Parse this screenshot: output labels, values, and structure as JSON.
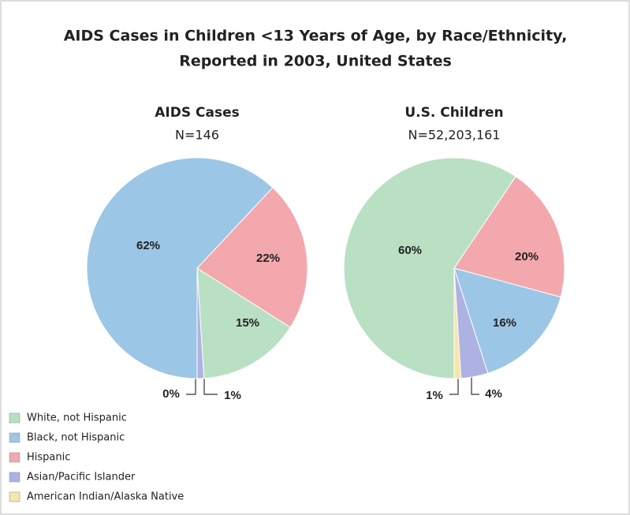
{
  "title": "AIDS Cases in Children <13 Years of Age, by Race/Ethnicity,",
  "subtitle": "Reported in 2003, United States",
  "legend": {
    "labels": [
      "White, not Hispanic",
      "Black, not Hispanic",
      "Hispanic",
      "Asian/Pacific Islander",
      "American Indian/Alaska Native"
    ],
    "colors": [
      "#b9e0c3",
      "#9cc6e6",
      "#f3a8ad",
      "#aeb2e2",
      "#f6e6a8"
    ]
  },
  "chart_data": [
    {
      "type": "pie",
      "title": "AIDS Cases",
      "subtitle": "N=146",
      "values": [
        15,
        62,
        22,
        1,
        0
      ],
      "value_labels": [
        "15%",
        "62%",
        "22%",
        "1%",
        "0%"
      ]
    },
    {
      "type": "pie",
      "title": "U.S. Children",
      "subtitle": "N=52,203,161",
      "values": [
        60,
        16,
        20,
        4,
        1
      ],
      "value_labels": [
        "60%",
        "16%",
        "20%",
        "4%",
        "1%"
      ]
    }
  ]
}
